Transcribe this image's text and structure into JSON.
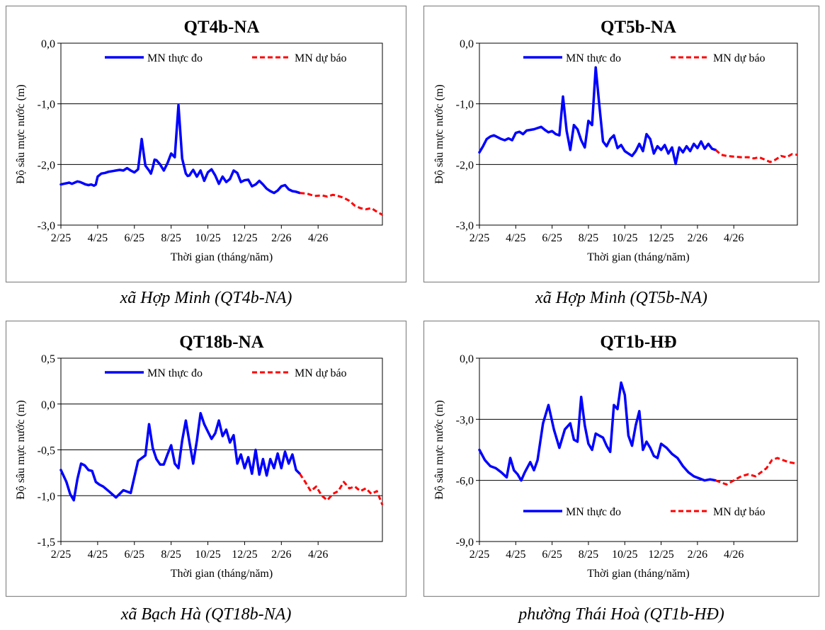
{
  "chart_data": [
    {
      "type": "line",
      "title": "QT4b-NA",
      "xlabel": "Thời gian (tháng/năm)",
      "ylabel": "Độ sâu mực nước (m)",
      "ylim": [
        -3.0,
        0.0
      ],
      "yticks": [
        "0,0",
        "-1,0",
        "-2,0",
        "-3,0"
      ],
      "ytick_values": [
        0.0,
        -1.0,
        -2.0,
        -3.0
      ],
      "x_categories": [
        "2/25",
        "4/25",
        "6/25",
        "8/25",
        "10/25",
        "12/25",
        "2/26",
        "4/26"
      ],
      "legend_position": "top",
      "caption": "xã Hợp Minh (QT4b-NA)",
      "series": [
        {
          "name": "MN thực đo",
          "color": "#0000ff",
          "style": "solid",
          "x": [
            0,
            0.15,
            0.3,
            0.45,
            0.6,
            0.75,
            0.9,
            1.05,
            1.2,
            1.35,
            1.5,
            1.65,
            1.8,
            1.9,
            2.0,
            2.2,
            2.4,
            2.6,
            2.8,
            3.0,
            3.2,
            3.4,
            3.6,
            3.8,
            4.0,
            4.2,
            4.4,
            4.6,
            4.8,
            4.9,
            5.0,
            5.1,
            5.2,
            5.4,
            5.6,
            5.8,
            6.0,
            6.2,
            6.4,
            6.6,
            6.8,
            6.9,
            7.0,
            7.1,
            7.2,
            7.4,
            7.6,
            7.8,
            8.0,
            8.2,
            8.4,
            8.6,
            8.8,
            9.0,
            9.2,
            9.4,
            9.6,
            9.8,
            10.0,
            10.2,
            10.4,
            10.6,
            10.8,
            11.0,
            11.2,
            11.4,
            11.6,
            11.8,
            12.0,
            12.2,
            12.4,
            12.6,
            12.8,
            13.0
          ],
          "y": [
            -2.33,
            -2.32,
            -2.31,
            -2.3,
            -2.32,
            -2.3,
            -2.28,
            -2.29,
            -2.31,
            -2.33,
            -2.34,
            -2.33,
            -2.35,
            -2.33,
            -2.2,
            -2.15,
            -2.14,
            -2.12,
            -2.11,
            -2.1,
            -2.09,
            -2.1,
            -2.06,
            -2.1,
            -2.13,
            -2.08,
            -1.58,
            -2.02,
            -2.1,
            -2.15,
            -2.05,
            -1.92,
            -1.93,
            -2.0,
            -2.1,
            -1.98,
            -1.82,
            -1.88,
            -1.02,
            -1.9,
            -2.15,
            -2.19,
            -2.18,
            -2.13,
            -2.09,
            -2.2,
            -2.1,
            -2.27,
            -2.13,
            -2.08,
            -2.18,
            -2.32,
            -2.2,
            -2.29,
            -2.24,
            -2.1,
            -2.14,
            -2.29,
            -2.26,
            -2.25,
            -2.36,
            -2.33,
            -2.27,
            -2.33,
            -2.4,
            -2.44,
            -2.47,
            -2.43,
            -2.36,
            -2.34,
            -2.41,
            -2.44,
            -2.45,
            -2.47
          ]
        },
        {
          "name": "MN dự báo",
          "color": "#ff0000",
          "style": "dashed",
          "x": [
            13.0,
            13.4,
            13.8,
            14.2,
            14.5,
            14.8,
            15.1,
            15.4,
            15.7,
            16.0,
            16.3,
            16.6,
            16.9,
            17.2,
            17.5
          ],
          "y": [
            -2.47,
            -2.48,
            -2.52,
            -2.51,
            -2.53,
            -2.5,
            -2.52,
            -2.55,
            -2.6,
            -2.68,
            -2.72,
            -2.74,
            -2.72,
            -2.78,
            -2.83
          ]
        }
      ]
    },
    {
      "type": "line",
      "title": "QT5b-NA",
      "xlabel": "Thời gian (tháng/năm)",
      "ylabel": "Độ sâu mực nước (m)",
      "ylim": [
        -3.0,
        0.0
      ],
      "yticks": [
        "0,0",
        "-1,0",
        "-2,0",
        "-3,0"
      ],
      "ytick_values": [
        0.0,
        -1.0,
        -2.0,
        -3.0
      ],
      "x_categories": [
        "2/25",
        "4/25",
        "6/25",
        "8/25",
        "10/25",
        "12/25",
        "2/26",
        "4/26"
      ],
      "legend_position": "top",
      "caption": "xã Hợp Minh (QT5b-NA)",
      "series": [
        {
          "name": "MN thực đo",
          "color": "#0000ff",
          "style": "solid",
          "x": [
            0,
            0.2,
            0.4,
            0.6,
            0.8,
            1.0,
            1.2,
            1.4,
            1.6,
            1.8,
            2.0,
            2.2,
            2.4,
            2.6,
            2.8,
            3.0,
            3.2,
            3.4,
            3.6,
            3.8,
            4.0,
            4.2,
            4.4,
            4.6,
            4.8,
            4.9,
            5.0,
            5.2,
            5.4,
            5.6,
            5.8,
            6.0,
            6.2,
            6.4,
            6.6,
            6.8,
            7.0,
            7.2,
            7.4,
            7.6,
            7.8,
            8.0,
            8.2,
            8.4,
            8.6,
            8.8,
            9.0,
            9.2,
            9.4,
            9.6,
            9.8,
            10.0,
            10.2,
            10.4,
            10.6,
            10.8,
            11.0,
            11.2,
            11.4,
            11.6,
            11.8,
            12.0,
            12.2,
            12.4,
            12.6,
            12.8,
            13.0
          ],
          "y": [
            -1.8,
            -1.7,
            -1.58,
            -1.54,
            -1.52,
            -1.55,
            -1.58,
            -1.6,
            -1.57,
            -1.6,
            -1.48,
            -1.46,
            -1.5,
            -1.44,
            -1.43,
            -1.42,
            -1.4,
            -1.38,
            -1.43,
            -1.47,
            -1.45,
            -1.5,
            -1.52,
            -0.88,
            -1.45,
            -1.6,
            -1.76,
            -1.35,
            -1.42,
            -1.6,
            -1.72,
            -1.28,
            -1.35,
            -0.4,
            -1.02,
            -1.62,
            -1.7,
            -1.58,
            -1.52,
            -1.73,
            -1.68,
            -1.78,
            -1.82,
            -1.86,
            -1.78,
            -1.66,
            -1.78,
            -1.5,
            -1.58,
            -1.82,
            -1.7,
            -1.76,
            -1.68,
            -1.82,
            -1.72,
            -1.99,
            -1.72,
            -1.8,
            -1.7,
            -1.78,
            -1.66,
            -1.73,
            -1.62,
            -1.74,
            -1.66,
            -1.74,
            -1.76
          ]
        },
        {
          "name": "MN dự báo",
          "color": "#ff0000",
          "style": "dashed",
          "x": [
            13.0,
            13.3,
            13.6,
            14.0,
            14.4,
            14.8,
            15.1,
            15.4,
            15.7,
            16.0,
            16.3,
            16.6,
            16.9,
            17.2,
            17.5
          ],
          "y": [
            -1.76,
            -1.84,
            -1.86,
            -1.87,
            -1.88,
            -1.88,
            -1.9,
            -1.88,
            -1.92,
            -1.96,
            -1.92,
            -1.86,
            -1.88,
            -1.83,
            -1.84
          ]
        }
      ]
    },
    {
      "type": "line",
      "title": "QT18b-NA",
      "xlabel": "Thời gian (tháng/năm)",
      "ylabel": "Độ sâu mực nước (m)",
      "ylim": [
        -1.5,
        0.5
      ],
      "yticks": [
        "0,5",
        "0,0",
        "-0,5",
        "-1,0",
        "-1,5"
      ],
      "ytick_values": [
        0.5,
        0.0,
        -0.5,
        -1.0,
        -1.5
      ],
      "x_categories": [
        "2/25",
        "4/25",
        "6/25",
        "8/25",
        "10/25",
        "12/25",
        "2/26",
        "4/26"
      ],
      "legend_position": "top",
      "caption": "xã Bạch Hà (QT18b-NA)",
      "series": [
        {
          "name": "MN thực đo",
          "color": "#0000ff",
          "style": "solid",
          "x": [
            0,
            0.3,
            0.5,
            0.7,
            0.9,
            1.1,
            1.3,
            1.5,
            1.7,
            1.9,
            2.1,
            2.3,
            2.6,
            3.0,
            3.4,
            3.8,
            4.2,
            4.6,
            4.8,
            5.0,
            5.2,
            5.4,
            5.6,
            5.8,
            6.0,
            6.2,
            6.4,
            6.6,
            6.8,
            7.0,
            7.2,
            7.4,
            7.6,
            7.8,
            8.0,
            8.2,
            8.4,
            8.6,
            8.8,
            9.0,
            9.2,
            9.4,
            9.6,
            9.8,
            10.0,
            10.2,
            10.4,
            10.6,
            10.8,
            11.0,
            11.2,
            11.4,
            11.6,
            11.8,
            12.0,
            12.2,
            12.4,
            12.6,
            12.8,
            13.0
          ],
          "y": [
            -0.72,
            -0.85,
            -0.98,
            -1.05,
            -0.82,
            -0.65,
            -0.67,
            -0.72,
            -0.73,
            -0.85,
            -0.88,
            -0.9,
            -0.95,
            -1.02,
            -0.94,
            -0.97,
            -0.62,
            -0.56,
            -0.22,
            -0.48,
            -0.6,
            -0.66,
            -0.66,
            -0.55,
            -0.45,
            -0.65,
            -0.7,
            -0.4,
            -0.18,
            -0.42,
            -0.65,
            -0.4,
            -0.1,
            -0.22,
            -0.3,
            -0.38,
            -0.32,
            -0.18,
            -0.35,
            -0.28,
            -0.42,
            -0.34,
            -0.65,
            -0.55,
            -0.7,
            -0.58,
            -0.76,
            -0.5,
            -0.77,
            -0.6,
            -0.78,
            -0.6,
            -0.7,
            -0.54,
            -0.7,
            -0.52,
            -0.65,
            -0.55,
            -0.72,
            -0.76
          ]
        },
        {
          "name": "MN dự báo",
          "color": "#ff0000",
          "style": "dashed",
          "x": [
            13.0,
            13.3,
            13.6,
            13.9,
            14.2,
            14.5,
            14.8,
            15.1,
            15.4,
            15.7,
            16.0,
            16.3,
            16.6,
            16.9,
            17.2,
            17.5
          ],
          "y": [
            -0.76,
            -0.85,
            -0.95,
            -0.9,
            -1.0,
            -1.05,
            -0.98,
            -0.95,
            -0.85,
            -0.92,
            -0.9,
            -0.95,
            -0.92,
            -0.98,
            -0.95,
            -1.1
          ]
        }
      ]
    },
    {
      "type": "line",
      "title": "QT1b-HĐ",
      "xlabel": "Thời gian (tháng/năm)",
      "ylabel": "Độ sâu mực nước (m)",
      "ylim": [
        -9.0,
        0.0
      ],
      "yticks": [
        "0,0",
        "-3,0",
        "-6,0",
        "-9,0"
      ],
      "ytick_values": [
        0.0,
        -3.0,
        -6.0,
        -9.0
      ],
      "x_categories": [
        "2/25",
        "4/25",
        "6/25",
        "8/25",
        "10/25",
        "12/25",
        "2/26",
        "4/26"
      ],
      "legend_position": "bottom",
      "caption": "phường Thái Hoà (QT1b-HĐ)",
      "series": [
        {
          "name": "MN thực đo",
          "color": "#0000ff",
          "style": "solid",
          "x": [
            0,
            0.3,
            0.6,
            0.9,
            1.2,
            1.5,
            1.7,
            1.9,
            2.1,
            2.3,
            2.5,
            2.8,
            3.0,
            3.2,
            3.5,
            3.8,
            4.1,
            4.4,
            4.7,
            5.0,
            5.2,
            5.4,
            5.6,
            5.8,
            6.0,
            6.2,
            6.4,
            6.6,
            6.8,
            7.0,
            7.2,
            7.4,
            7.6,
            7.8,
            8.0,
            8.2,
            8.4,
            8.6,
            8.8,
            9.0,
            9.2,
            9.4,
            9.6,
            9.8,
            10.0,
            10.3,
            10.6,
            10.9,
            11.2,
            11.5,
            11.8,
            12.1,
            12.4,
            12.7,
            13.0
          ],
          "y": [
            -4.5,
            -5.0,
            -5.3,
            -5.4,
            -5.6,
            -5.85,
            -4.9,
            -5.5,
            -5.7,
            -6.0,
            -5.6,
            -5.1,
            -5.5,
            -5.0,
            -3.2,
            -2.3,
            -3.5,
            -4.4,
            -3.5,
            -3.2,
            -4.0,
            -4.1,
            -1.9,
            -3.3,
            -4.2,
            -4.5,
            -3.7,
            -3.8,
            -3.9,
            -4.3,
            -4.6,
            -2.3,
            -2.5,
            -1.2,
            -1.8,
            -3.8,
            -4.3,
            -3.3,
            -2.6,
            -4.5,
            -4.1,
            -4.4,
            -4.8,
            -4.9,
            -4.2,
            -4.4,
            -4.7,
            -4.9,
            -5.3,
            -5.6,
            -5.8,
            -5.9,
            -6.0,
            -5.95,
            -6.0
          ]
        },
        {
          "name": "MN dự báo",
          "color": "#ff0000",
          "style": "dashed",
          "x": [
            13.0,
            13.3,
            13.6,
            14.0,
            14.4,
            14.8,
            15.2,
            15.5,
            15.8,
            16.1,
            16.4,
            16.7,
            17.0,
            17.3,
            17.5
          ],
          "y": [
            -6.0,
            -6.1,
            -6.2,
            -6.0,
            -5.8,
            -5.7,
            -5.8,
            -5.6,
            -5.4,
            -5.0,
            -4.9,
            -5.0,
            -5.1,
            -5.15,
            -5.2
          ]
        }
      ]
    }
  ]
}
